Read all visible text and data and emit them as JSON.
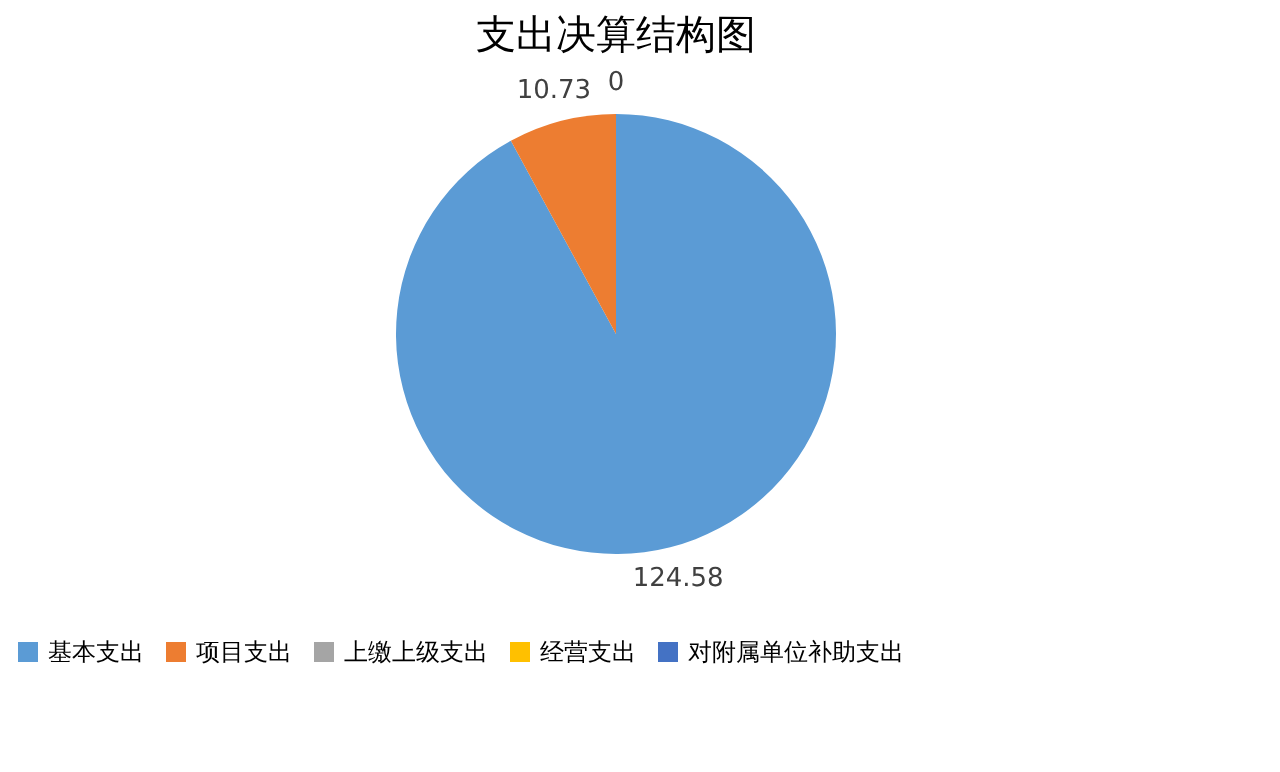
{
  "chart_data": {
    "type": "pie",
    "title": "支出决算结构图",
    "categories": [
      "基本支出",
      "项目支出",
      "上缴上级支出",
      "经营支出",
      "对附属单位补助支出"
    ],
    "values": [
      124.58,
      10.73,
      0,
      0,
      0
    ],
    "colors": [
      "#5b9bd5",
      "#ed7d31",
      "#a5a5a5",
      "#ffc000",
      "#4472c4"
    ],
    "value_labels": [
      "124.58",
      "10.73",
      "0",
      null,
      null
    ],
    "legend": "bottom"
  }
}
